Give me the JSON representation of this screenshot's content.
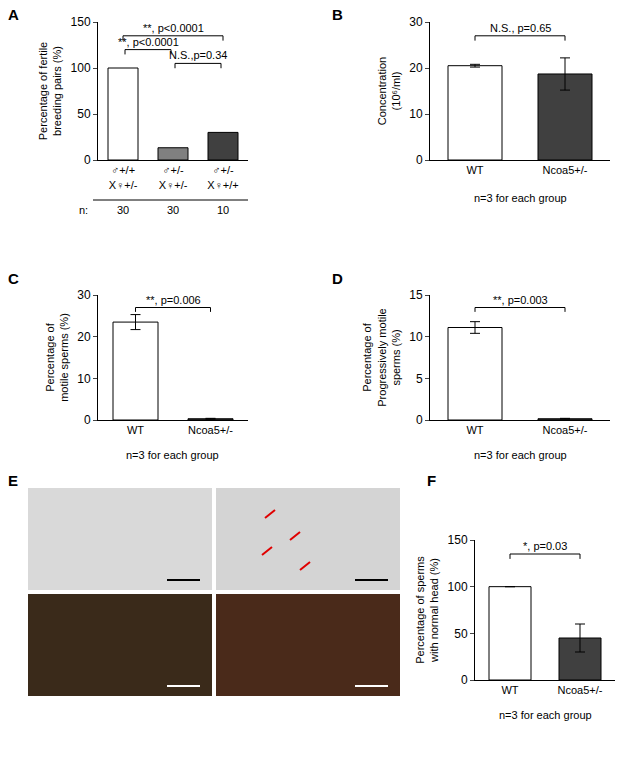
{
  "chart_data": [
    {
      "panel": "A",
      "type": "bar",
      "categories": [
        "♂+/+\nX♀+/-",
        "♂+/-\nX♀+/-",
        "♂+/-\nX♀+/+"
      ],
      "values": [
        100,
        13.3,
        30
      ],
      "colors": [
        "#ffffff",
        "#808080",
        "#404040"
      ],
      "y_label": "Percentage of fertile\nbreeding pairs (%)",
      "ylim": [
        0,
        150
      ],
      "yticks": [
        0,
        50,
        100,
        150
      ],
      "n_label": "n:",
      "n": [
        30,
        30,
        10
      ],
      "comparisons": [
        {
          "pair": [
            0,
            2
          ],
          "label": "**, p<0.0001"
        },
        {
          "pair": [
            0,
            1
          ],
          "label": "**, p<0.0001"
        },
        {
          "pair": [
            1,
            2
          ],
          "label": "N.S.,p=0.34"
        }
      ]
    },
    {
      "panel": "B",
      "type": "bar",
      "categories": [
        "WT",
        "Ncoa5+/-"
      ],
      "values": [
        20.5,
        18.7
      ],
      "errors": [
        0.3,
        3.5
      ],
      "colors": [
        "#ffffff",
        "#404040"
      ],
      "y_label": "Concentration\n(10⁶/ml)",
      "ylim": [
        0,
        30
      ],
      "yticks": [
        0,
        10,
        20,
        30
      ],
      "note": "n=3 for each group",
      "comparisons": [
        {
          "pair": [
            0,
            1
          ],
          "label": "N.S., p=0.65"
        }
      ]
    },
    {
      "panel": "C",
      "type": "bar",
      "categories": [
        "WT",
        "Ncoa5+/-"
      ],
      "values": [
        23.5,
        0.3
      ],
      "errors": [
        1.8,
        0.1
      ],
      "colors": [
        "#ffffff",
        "#404040"
      ],
      "y_label": "Percentage of\nmotile sperms (%)",
      "ylim": [
        0,
        30
      ],
      "yticks": [
        0,
        10,
        20,
        30
      ],
      "note": "n=3 for each group",
      "comparisons": [
        {
          "pair": [
            0,
            1
          ],
          "label": "**, p=0.006"
        }
      ]
    },
    {
      "panel": "D",
      "type": "bar",
      "categories": [
        "WT",
        "Ncoa5+/-"
      ],
      "values": [
        11.1,
        0.15
      ],
      "errors": [
        0.7,
        0.05
      ],
      "colors": [
        "#ffffff",
        "#404040"
      ],
      "y_label": "Percentage of\nProgressively motile\nsperms (%)",
      "ylim": [
        0,
        15
      ],
      "yticks": [
        0,
        5,
        10,
        15
      ],
      "note": "n=3 for each group",
      "comparisons": [
        {
          "pair": [
            0,
            1
          ],
          "label": "**, p=0.003"
        }
      ]
    },
    {
      "panel": "F",
      "type": "bar",
      "categories": [
        "WT",
        "Ncoa5+/-"
      ],
      "values": [
        100,
        45
      ],
      "errors": [
        0,
        15
      ],
      "colors": [
        "#ffffff",
        "#404040"
      ],
      "y_label": "Percentage of sperms\nwith normal head (%)",
      "ylim": [
        0,
        150
      ],
      "yticks": [
        0,
        50,
        100,
        150
      ],
      "note": "n=3 for each group",
      "comparisons": [
        {
          "pair": [
            0,
            1
          ],
          "label": "*, p=0.03"
        }
      ]
    }
  ],
  "panel_E": {
    "panel": "E"
  }
}
